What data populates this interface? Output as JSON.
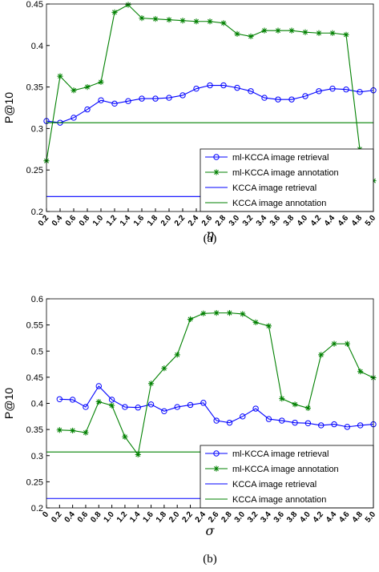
{
  "chart_data": [
    {
      "type": "line",
      "xlabel": "η",
      "ylabel": "P@10",
      "caption": "(a)",
      "categories": [
        "0.2",
        "0.4",
        "0.6",
        "0.8",
        "1.0",
        "1.2",
        "1.4",
        "1.6",
        "1.8",
        "2.0",
        "2.2",
        "2.4",
        "2.6",
        "2.8",
        "3.0",
        "3.2",
        "3.4",
        "3.6",
        "3.8",
        "4.0",
        "4.2",
        "4.4",
        "4.6",
        "4.8",
        "5.0"
      ],
      "ylim": [
        0.2,
        0.45
      ],
      "yticks": [
        0.2,
        0.25,
        0.3,
        0.35,
        0.4,
        0.45
      ],
      "grid": false,
      "legend": "lower right",
      "series": [
        {
          "name": "ml-KCCA image retrieval",
          "color": "#0000ff",
          "marker": "o",
          "values": [
            0.309,
            0.307,
            0.313,
            0.323,
            0.334,
            0.33,
            0.333,
            0.336,
            0.336,
            0.337,
            0.34,
            0.348,
            0.352,
            0.352,
            0.349,
            0.345,
            0.337,
            0.335,
            0.335,
            0.339,
            0.345,
            0.348,
            0.347,
            0.344,
            0.346
          ]
        },
        {
          "name": "ml-KCCA image annotation",
          "color": "#008000",
          "marker": "*",
          "values": [
            0.261,
            0.363,
            0.346,
            0.35,
            0.356,
            0.44,
            0.449,
            0.433,
            0.432,
            0.431,
            0.43,
            0.429,
            0.429,
            0.427,
            0.414,
            0.411,
            0.418,
            0.418,
            0.418,
            0.416,
            0.415,
            0.415,
            0.413,
            0.275,
            0.237
          ]
        },
        {
          "name": "KCCA image retrieval",
          "color": "#0000ff",
          "marker": "none",
          "values": [
            0.218,
            0.218,
            0.218,
            0.218,
            0.218,
            0.218,
            0.218,
            0.218,
            0.218,
            0.218,
            0.218,
            0.218,
            0.218,
            0.218,
            0.218,
            0.218,
            0.218,
            0.218,
            0.218,
            0.218,
            0.218,
            0.218,
            0.218,
            0.218,
            0.218
          ]
        },
        {
          "name": "KCCA image annotation",
          "color": "#008000",
          "marker": "none",
          "values": [
            0.307,
            0.307,
            0.307,
            0.307,
            0.307,
            0.307,
            0.307,
            0.307,
            0.307,
            0.307,
            0.307,
            0.307,
            0.307,
            0.307,
            0.307,
            0.307,
            0.307,
            0.307,
            0.307,
            0.307,
            0.307,
            0.307,
            0.307,
            0.307,
            0.307
          ]
        }
      ]
    },
    {
      "type": "line",
      "xlabel": "σ",
      "ylabel": "P@10",
      "caption": "(b)",
      "categories": [
        "0",
        "0.2",
        "0.4",
        "0.6",
        "0.8",
        "1.0",
        "1.2",
        "1.4",
        "1.6",
        "1.8",
        "2.0",
        "2.2",
        "2.4",
        "2.6",
        "2.8",
        "3.0",
        "3.2",
        "3.4",
        "3.6",
        "3.8",
        "4.0",
        "4.2",
        "4.4",
        "4.6",
        "4.8",
        "5.0"
      ],
      "ylim": [
        0.2,
        0.6
      ],
      "yticks": [
        0.2,
        0.25,
        0.3,
        0.35,
        0.4,
        0.45,
        0.5,
        0.55,
        0.6
      ],
      "grid": false,
      "legend": "lower right",
      "series": [
        {
          "name": "ml-KCCA image retrieval",
          "color": "#0000ff",
          "marker": "o",
          "values": [
            null,
            0.408,
            0.407,
            0.393,
            0.433,
            0.407,
            0.393,
            0.392,
            0.398,
            0.385,
            0.393,
            0.397,
            0.401,
            0.367,
            0.363,
            0.375,
            0.39,
            0.37,
            0.367,
            0.363,
            0.362,
            0.358,
            0.36,
            0.355,
            0.358,
            0.36
          ]
        },
        {
          "name": "ml-KCCA image annotation",
          "color": "#008000",
          "marker": "*",
          "values": [
            null,
            0.349,
            0.348,
            0.344,
            0.403,
            0.396,
            0.336,
            0.302,
            0.438,
            0.467,
            0.493,
            0.561,
            0.572,
            0.573,
            0.573,
            0.571,
            0.555,
            0.548,
            0.409,
            0.398,
            0.391,
            0.493,
            0.514,
            0.514,
            0.461,
            0.449
          ]
        },
        {
          "name": "KCCA image retrieval",
          "color": "#0000ff",
          "marker": "none",
          "values": [
            0.218,
            0.218,
            0.218,
            0.218,
            0.218,
            0.218,
            0.218,
            0.218,
            0.218,
            0.218,
            0.218,
            0.218,
            0.218,
            0.218,
            0.218,
            0.218,
            0.218,
            0.218,
            0.218,
            0.218,
            0.218,
            0.218,
            0.218,
            0.218,
            0.218,
            0.218
          ]
        },
        {
          "name": "KCCA image annotation",
          "color": "#008000",
          "marker": "none",
          "values": [
            0.307,
            0.307,
            0.307,
            0.307,
            0.307,
            0.307,
            0.307,
            0.307,
            0.307,
            0.307,
            0.307,
            0.307,
            0.307,
            0.307,
            0.307,
            0.307,
            0.307,
            0.307,
            0.307,
            0.307,
            0.307,
            0.307,
            0.307,
            0.307,
            0.307,
            0.307
          ]
        }
      ]
    }
  ]
}
